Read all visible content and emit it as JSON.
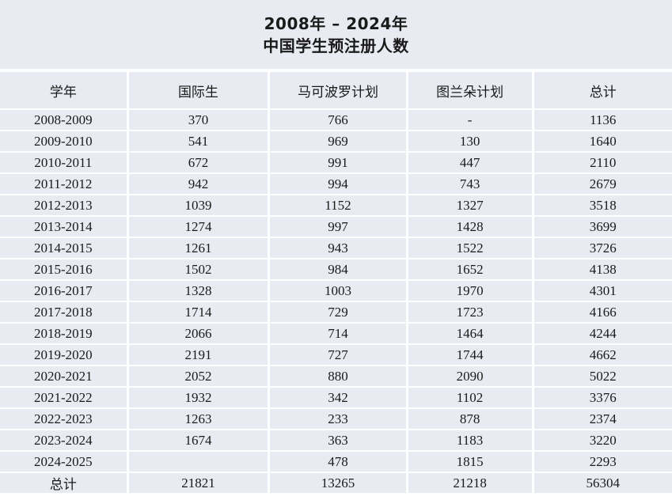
{
  "title": {
    "line1": "2008年 – 2024年",
    "line2": "中国学生预注册人数"
  },
  "table": {
    "headers": [
      "学年",
      "国际生",
      "马可波罗计划",
      "图兰朵计划",
      "总计"
    ],
    "rows": [
      [
        "2008-2009",
        "370",
        "766",
        "-",
        "1136"
      ],
      [
        "2009-2010",
        "541",
        "969",
        "130",
        "1640"
      ],
      [
        "2010-2011",
        "672",
        "991",
        "447",
        "2110"
      ],
      [
        "2011-2012",
        "942",
        "994",
        "743",
        "2679"
      ],
      [
        "2012-2013",
        "1039",
        "1152",
        "1327",
        "3518"
      ],
      [
        "2013-2014",
        "1274",
        "997",
        "1428",
        "3699"
      ],
      [
        "2014-2015",
        "1261",
        "943",
        "1522",
        "3726"
      ],
      [
        "2015-2016",
        "1502",
        "984",
        "1652",
        "4138"
      ],
      [
        "2016-2017",
        "1328",
        "1003",
        "1970",
        "4301"
      ],
      [
        "2017-2018",
        "1714",
        "729",
        "1723",
        "4166"
      ],
      [
        "2018-2019",
        "2066",
        "714",
        "1464",
        "4244"
      ],
      [
        "2019-2020",
        "2191",
        "727",
        "1744",
        "4662"
      ],
      [
        "2020-2021",
        "2052",
        "880",
        "2090",
        "5022"
      ],
      [
        "2021-2022",
        "1932",
        "342",
        "1102",
        "3376"
      ],
      [
        "2022-2023",
        "1263",
        "233",
        "878",
        "2374"
      ],
      [
        "2023-2024",
        "1674",
        "363",
        "1183",
        "3220"
      ],
      [
        "2024-2025",
        "",
        "478",
        "1815",
        "2293"
      ],
      [
        "总计",
        "21821",
        "13265",
        "21218",
        "56304"
      ]
    ]
  },
  "colors": {
    "cell_bg": "#E9EBF2",
    "gutter": "#FFFFFF",
    "text": "#1A1A1A"
  }
}
